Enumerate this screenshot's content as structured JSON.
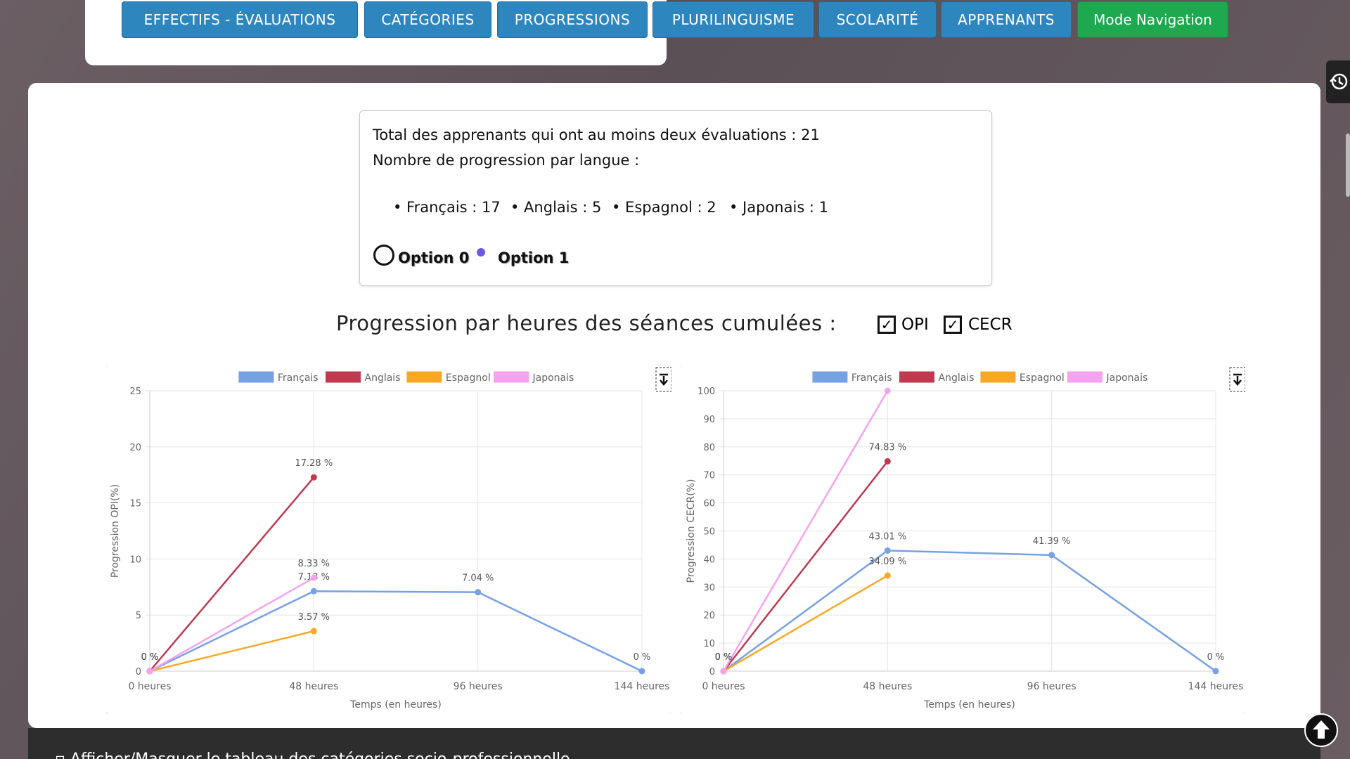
{
  "nav": [
    "EFFECTIFS - ÉVALUATIONS",
    "CATÉGORIES",
    "PROGRESSIONS",
    "PLURILINGUISME",
    "SCOLARITÉ",
    "APPRENANTS",
    "Mode Navigation"
  ],
  "info": {
    "total": "Total des apprenants qui ont au moins deux évaluations : 21",
    "per_language": "Nombre de progression par langue :",
    "languages": [
      "• Français : 17",
      "• Anglais : 5",
      "• Espagnol : 2",
      "• Japonais : 1"
    ],
    "options": [
      "Option 0",
      "Option 1"
    ]
  },
  "section_title": "Progression par heures des séances cumulées :",
  "checkboxes": [
    "OPI",
    "CECR"
  ],
  "footer_toggle": "▫ Afficher/Masquer le tableau des catégories socio-professionnelle",
  "chart_data": [
    {
      "type": "line",
      "xlabel": "Temps (en heures)",
      "ylabel": "Progression OPI(%)",
      "categories": [
        "0 heures",
        "48 heures",
        "96 heures",
        "144 heures"
      ],
      "ylim": [
        0,
        25
      ],
      "yticks": [
        0,
        5,
        10,
        15,
        20,
        25
      ],
      "grid": true,
      "series": [
        {
          "name": "Français",
          "color": "#77a1e5",
          "values": [
            0,
            7.13,
            7.04,
            0
          ],
          "value_labels": [
            "0 %",
            "7.13 %",
            "7.04 %",
            "0 %"
          ]
        },
        {
          "name": "Anglais",
          "color": "#c0394f",
          "values": [
            0,
            17.28,
            null,
            null
          ],
          "value_labels": [
            "0 %",
            "17.28 %",
            null,
            null
          ]
        },
        {
          "name": "Espagnol",
          "color": "#f9a825",
          "values": [
            0,
            3.57,
            null,
            null
          ],
          "value_labels": [
            "0 %",
            "3.57 %",
            null,
            null
          ]
        },
        {
          "name": "Japonais",
          "color": "#f5a3f0",
          "values": [
            0,
            8.33,
            null,
            null
          ],
          "value_labels": [
            "0 %",
            "8.33 %",
            null,
            null
          ]
        }
      ]
    },
    {
      "type": "line",
      "xlabel": "Temps (en heures)",
      "ylabel": "Progression CECR(%)",
      "categories": [
        "0 heures",
        "48 heures",
        "96 heures",
        "144 heures"
      ],
      "ylim": [
        0,
        100
      ],
      "yticks": [
        0,
        10,
        20,
        30,
        40,
        50,
        60,
        70,
        80,
        90,
        100
      ],
      "grid": true,
      "series": [
        {
          "name": "Français",
          "color": "#77a1e5",
          "values": [
            0,
            43.01,
            41.39,
            0
          ],
          "value_labels": [
            "0 %",
            "43.01 %",
            "41.39 %",
            "0 %"
          ]
        },
        {
          "name": "Anglais",
          "color": "#c0394f",
          "values": [
            0,
            74.83,
            null,
            null
          ],
          "value_labels": [
            "0 %",
            "74.83 %",
            null,
            null
          ]
        },
        {
          "name": "Espagnol",
          "color": "#f9a825",
          "values": [
            0,
            34.09,
            null,
            null
          ],
          "value_labels": [
            "0 %",
            "34.09 %",
            null,
            null
          ]
        },
        {
          "name": "Japonais",
          "color": "#f5a3f0",
          "values": [
            0,
            100,
            null,
            null
          ],
          "value_labels": [
            "0 %",
            null,
            null,
            null
          ]
        }
      ]
    }
  ]
}
